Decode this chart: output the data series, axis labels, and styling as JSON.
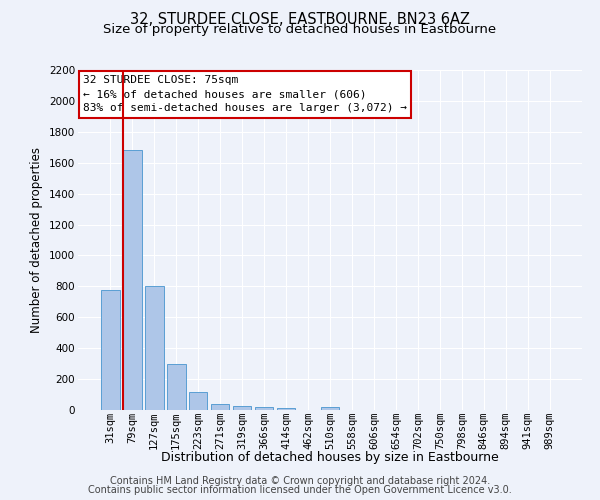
{
  "title": "32, STURDEE CLOSE, EASTBOURNE, BN23 6AZ",
  "subtitle": "Size of property relative to detached houses in Eastbourne",
  "xlabel": "Distribution of detached houses by size in Eastbourne",
  "ylabel": "Number of detached properties",
  "categories": [
    "31sqm",
    "79sqm",
    "127sqm",
    "175sqm",
    "223sqm",
    "271sqm",
    "319sqm",
    "366sqm",
    "414sqm",
    "462sqm",
    "510sqm",
    "558sqm",
    "606sqm",
    "654sqm",
    "702sqm",
    "750sqm",
    "798sqm",
    "846sqm",
    "894sqm",
    "941sqm",
    "989sqm"
  ],
  "values": [
    775,
    1680,
    800,
    295,
    115,
    40,
    25,
    20,
    15,
    0,
    20,
    0,
    0,
    0,
    0,
    0,
    0,
    0,
    0,
    0,
    0
  ],
  "bar_color": "#aec6e8",
  "bar_edge_color": "#5a9fd4",
  "vline_color": "#cc0000",
  "annotation_box_text": "32 STURDEE CLOSE: 75sqm\n← 16% of detached houses are smaller (606)\n83% of semi-detached houses are larger (3,072) →",
  "ylim": [
    0,
    2200
  ],
  "yticks": [
    0,
    200,
    400,
    600,
    800,
    1000,
    1200,
    1400,
    1600,
    1800,
    2000,
    2200
  ],
  "background_color": "#eef2fa",
  "grid_color": "#ffffff",
  "footer_line1": "Contains HM Land Registry data © Crown copyright and database right 2024.",
  "footer_line2": "Contains public sector information licensed under the Open Government Licence v3.0.",
  "title_fontsize": 10.5,
  "subtitle_fontsize": 9.5,
  "xlabel_fontsize": 9,
  "ylabel_fontsize": 8.5,
  "tick_fontsize": 7.5,
  "annot_fontsize": 8,
  "footer_fontsize": 7
}
